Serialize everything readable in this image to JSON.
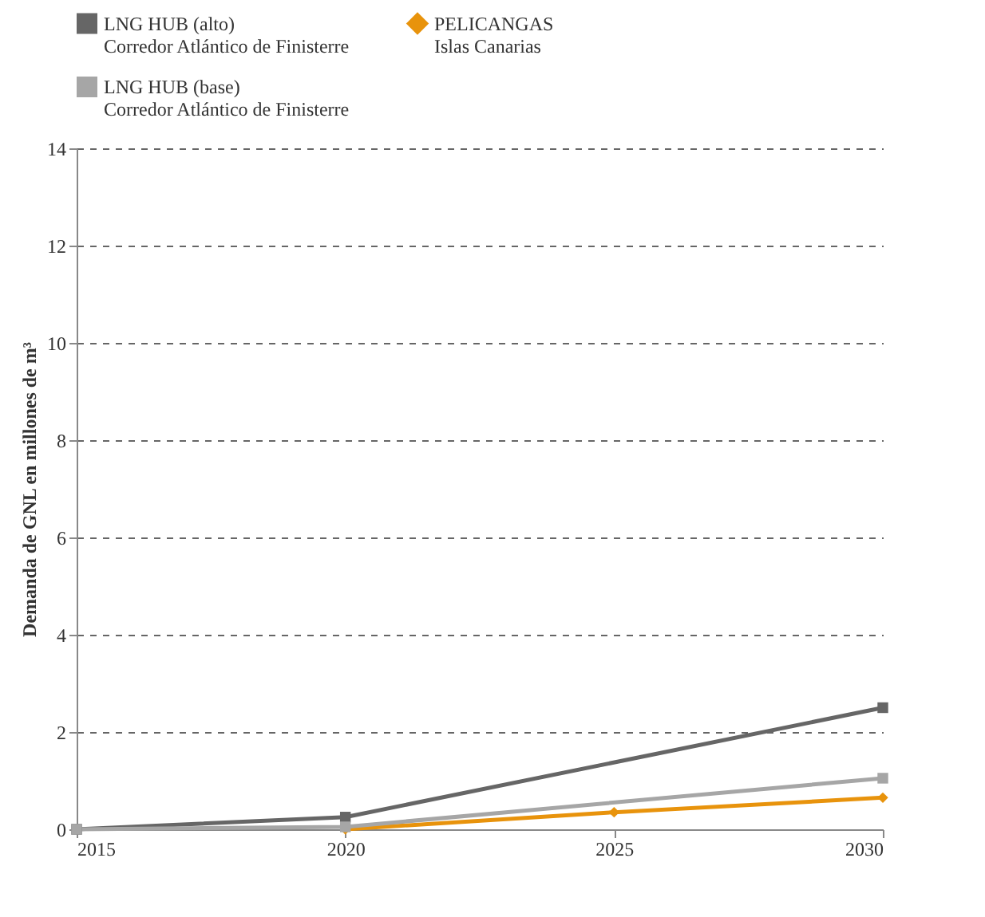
{
  "chart_data": {
    "type": "line",
    "ylabel": "Demanda de GNL en millones de m³",
    "xlim": [
      2015,
      2030
    ],
    "xticks": [
      2015,
      2020,
      2025,
      2030
    ],
    "ylim": [
      0,
      14
    ],
    "yticks": [
      0,
      2,
      4,
      6,
      8,
      10,
      12,
      14
    ],
    "grid": "y",
    "legend": "top",
    "line_style": "solid",
    "series": [
      {
        "name": "LNG HUB (alto)\nCorredor Atlántico de Finisterre",
        "color": "#666666",
        "marker": "square",
        "x": [
          2015,
          2020,
          2030
        ],
        "values": [
          0,
          0.25,
          2.5
        ]
      },
      {
        "name": "PELICANGAS\nIslas Canarias",
        "color": "#e8930c",
        "marker": "diamond",
        "x": [
          2020,
          2025,
          2030
        ],
        "values": [
          0,
          0.35,
          0.65
        ]
      },
      {
        "name": "LNG HUB (base)\nCorredor Atlántico de Finisterre",
        "color": "#a6a6a6",
        "marker": "square",
        "x": [
          2015,
          2020,
          2030
        ],
        "values": [
          0,
          0.05,
          1.05
        ]
      }
    ]
  }
}
